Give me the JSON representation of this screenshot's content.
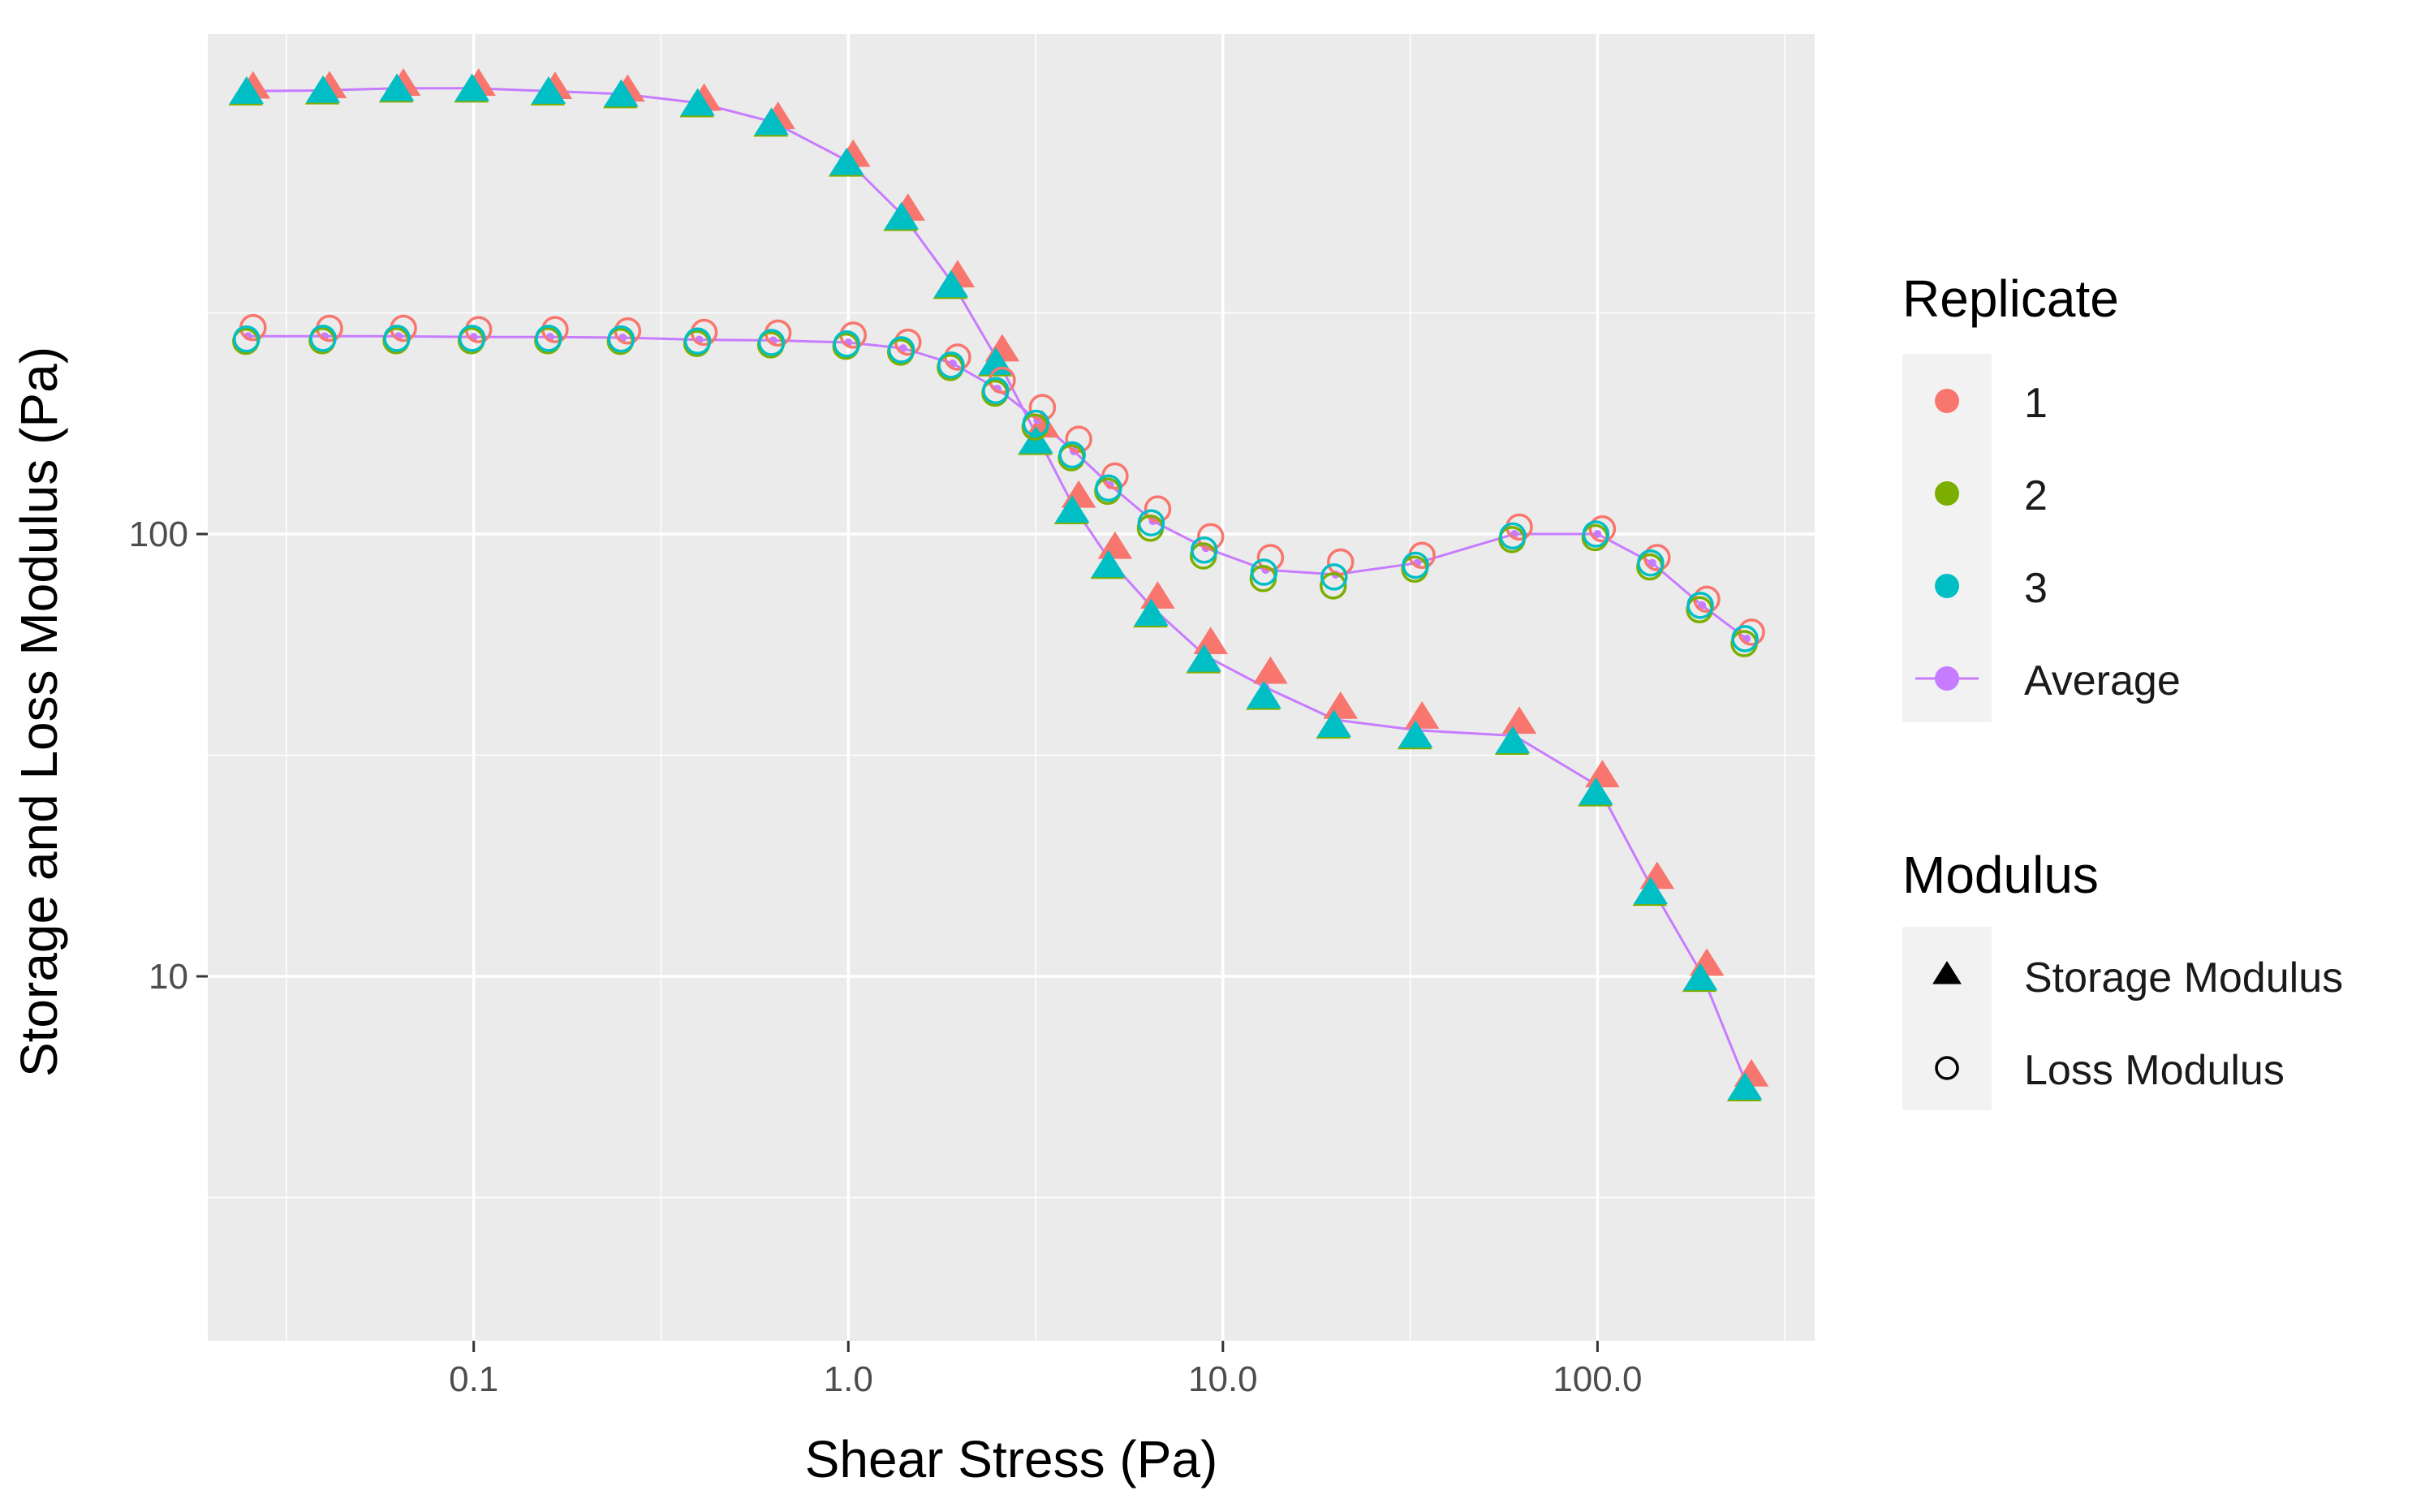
{
  "chart_data": {
    "type": "scatter",
    "title": "",
    "xlabel": "Shear Stress (Pa)",
    "ylabel": "Storage and Loss Modulus (Pa)",
    "xscale": "log10",
    "yscale": "log10",
    "xlim": [
      0.0195,
      380
    ],
    "ylim": [
      1.5,
      1350
    ],
    "x_ticks": [
      {
        "value": 0.1,
        "label": "0.1"
      },
      {
        "value": 1,
        "label": "1.0"
      },
      {
        "value": 10,
        "label": "10.0"
      },
      {
        "value": 100,
        "label": "100.0"
      }
    ],
    "y_ticks": [
      {
        "value": 10,
        "label": "10"
      },
      {
        "value": 100,
        "label": "100"
      }
    ],
    "grid": true,
    "colors": {
      "panel": "#ebebeb",
      "grid": "#ffffff",
      "replicate_1": "#F8766D",
      "replicate_2": "#7CAE00",
      "replicate_3": "#00BFC4",
      "average": "#C77CFF"
    },
    "legend": {
      "position": "right",
      "replicate_title": "Replicate",
      "replicate_items": [
        "1",
        "2",
        "3",
        "Average"
      ],
      "modulus_title": "Modulus",
      "modulus_items": [
        {
          "label": "Storage Modulus",
          "shape": "triangle"
        },
        {
          "label": "Loss Modulus",
          "shape": "circle"
        }
      ]
    },
    "series": [
      {
        "name": "Storage Modulus",
        "shape": "triangle",
        "x": [
          0.025,
          0.04,
          0.063,
          0.1,
          0.16,
          0.25,
          0.4,
          0.63,
          1.0,
          1.4,
          1.9,
          2.5,
          3.2,
          4.0,
          5.0,
          6.5,
          9.0,
          13,
          20,
          33,
          60,
          100,
          140,
          190,
          250
        ],
        "replicate_1": [
          1010,
          1012,
          1025,
          1025,
          1008,
          994,
          948,
          862,
          708,
          535,
          378,
          257,
          173,
          120,
          92,
          71,
          56,
          48,
          40,
          38,
          37,
          28,
          16.5,
          10.5,
          5.9
        ],
        "replicate_2": [
          1000,
          1005,
          1015,
          1015,
          1000,
          985,
          940,
          850,
          690,
          520,
          365,
          244,
          162,
          113,
          85,
          66,
          52,
          43,
          37,
          35,
          34,
          26,
          15.5,
          9.9,
          5.6
        ],
        "replicate_3": [
          1000,
          1005,
          1015,
          1015,
          1000,
          985,
          940,
          850,
          690,
          520,
          365,
          244,
          162,
          113,
          85,
          66,
          52,
          43,
          37,
          35,
          34,
          26,
          15.5,
          9.9,
          5.6
        ],
        "average": [
          1003,
          1007,
          1018,
          1018,
          1003,
          988,
          943,
          854,
          696,
          525,
          369,
          248,
          166,
          115,
          87,
          68,
          53,
          45,
          38,
          36,
          35,
          27,
          15.8,
          10.1,
          5.7
        ]
      },
      {
        "name": "Loss Modulus",
        "shape": "circle",
        "x": [
          0.025,
          0.04,
          0.063,
          0.1,
          0.16,
          0.25,
          0.4,
          0.63,
          1.0,
          1.4,
          1.9,
          2.5,
          3.2,
          4.0,
          5.0,
          6.5,
          9.0,
          13,
          20,
          33,
          60,
          100,
          140,
          190,
          250
        ],
        "replicate_1": [
          288,
          287,
          287,
          285,
          285,
          283,
          281,
          280,
          277,
          267,
          247,
          219,
          190,
          161,
          133,
          112,
          97,
          87,
          85,
          88,
          102,
          101,
          87,
          70,
          59
        ],
        "replicate_2": [
          275,
          276,
          276,
          276,
          276,
          275,
          272,
          270,
          268,
          260,
          240,
          210,
          176,
          150,
          126,
          104,
          90,
          80,
          77,
          84,
          98,
          99,
          85,
          68,
          57
        ],
        "replicate_3": [
          276,
          277,
          277,
          277,
          277,
          276,
          273,
          271,
          269,
          261,
          241,
          211,
          178,
          151,
          127,
          106,
          92,
          82,
          80,
          85,
          99,
          100,
          86,
          69,
          58
        ],
        "average": [
          280,
          280,
          280,
          279,
          279,
          278,
          275,
          274,
          271,
          263,
          243,
          213,
          181,
          154,
          129,
          107,
          93,
          83,
          81,
          86,
          100,
          100,
          86,
          69,
          58
        ]
      }
    ]
  }
}
